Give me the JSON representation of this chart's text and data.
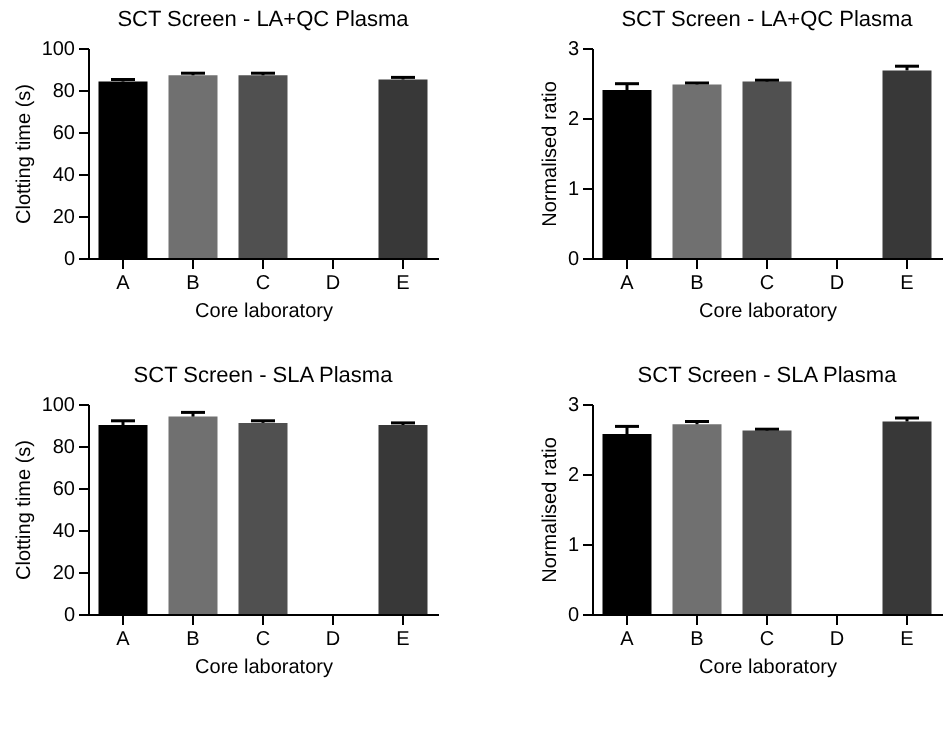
{
  "chart_data": [
    {
      "type": "bar",
      "title": "SCT Screen - LA+QC Plasma",
      "xlabel": "Core laboratory",
      "ylabel": "Clotting time (s)",
      "categories": [
        "A",
        "B",
        "C",
        "D",
        "E"
      ],
      "values": [
        84,
        87,
        87,
        null,
        85
      ],
      "errors": [
        [
          84,
          85
        ],
        [
          87,
          88
        ],
        [
          87,
          88
        ],
        null,
        [
          85,
          86
        ]
      ],
      "colors": [
        "#000000",
        "#707070",
        "#505050",
        "#505050",
        "#383838"
      ],
      "ylim": [
        0,
        100
      ],
      "yticks": [
        0,
        20,
        40,
        60,
        80,
        100
      ],
      "grid": false
    },
    {
      "type": "bar",
      "title": "SCT Screen - LA+QC Plasma",
      "xlabel": "Core laboratory",
      "ylabel": "Normalised ratio",
      "categories": [
        "A",
        "B",
        "C",
        "D",
        "E"
      ],
      "values": [
        2.4,
        2.48,
        2.52,
        null,
        2.68
      ],
      "errors": [
        [
          2.4,
          2.49
        ],
        [
          2.48,
          2.5
        ],
        [
          2.52,
          2.54
        ],
        null,
        [
          2.68,
          2.74
        ]
      ],
      "colors": [
        "#000000",
        "#707070",
        "#505050",
        "#505050",
        "#383838"
      ],
      "ylim": [
        0,
        3
      ],
      "yticks": [
        0,
        1,
        2,
        3
      ],
      "grid": false
    },
    {
      "type": "bar",
      "title": "SCT Screen - SLA Plasma",
      "xlabel": "Core laboratory",
      "ylabel": "Clotting time (s)",
      "categories": [
        "A",
        "B",
        "C",
        "D",
        "E"
      ],
      "values": [
        90,
        94,
        91,
        null,
        90
      ],
      "errors": [
        [
          90,
          92
        ],
        [
          94,
          96
        ],
        [
          91,
          92
        ],
        null,
        [
          90,
          91
        ]
      ],
      "colors": [
        "#000000",
        "#707070",
        "#505050",
        "#505050",
        "#383838"
      ],
      "ylim": [
        0,
        100
      ],
      "yticks": [
        0,
        20,
        40,
        60,
        80,
        100
      ],
      "grid": false
    },
    {
      "type": "bar",
      "title": "SCT Screen - SLA Plasma",
      "xlabel": "Core laboratory",
      "ylabel": "Normalised ratio",
      "categories": [
        "A",
        "B",
        "C",
        "D",
        "E"
      ],
      "values": [
        2.57,
        2.71,
        2.62,
        null,
        2.75
      ],
      "errors": [
        [
          2.57,
          2.68
        ],
        [
          2.71,
          2.75
        ],
        [
          2.62,
          2.64
        ],
        null,
        [
          2.75,
          2.8
        ]
      ],
      "colors": [
        "#000000",
        "#707070",
        "#505050",
        "#505050",
        "#383838"
      ],
      "ylim": [
        0,
        3
      ],
      "yticks": [
        0,
        1,
        2,
        3
      ],
      "grid": false
    }
  ]
}
